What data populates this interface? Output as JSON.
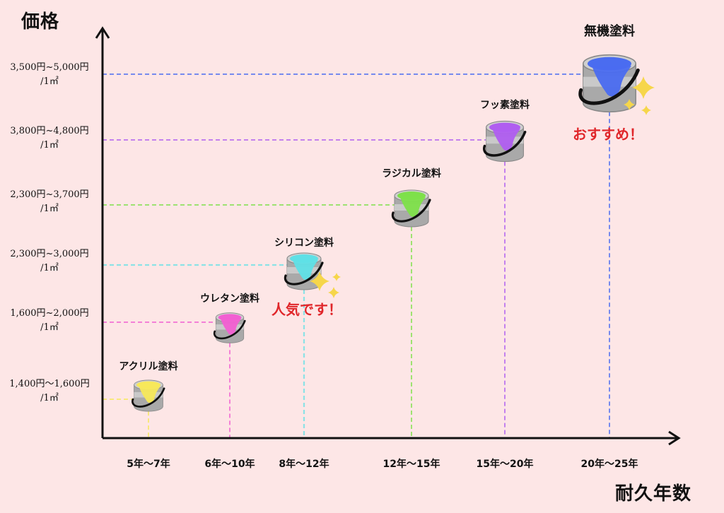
{
  "colors": {
    "background": "#fde6e6",
    "axis": "#111111",
    "acrylic": "#f7e85a",
    "urethane": "#f25fd2",
    "silicone": "#5fe0e6",
    "radical": "#7ee04a",
    "fluorine": "#b05ef0",
    "inorganic": "#4a6cf0",
    "callout": "#e0262a",
    "sparkle": "#f6d64a"
  },
  "icons": {
    "paint_can": "paint-can-icon",
    "sparkle": "sparkle-icon"
  },
  "chart_data": {
    "type": "scatter",
    "ylabel": "価格",
    "xlabel": "耐久年数",
    "categories": [
      "5年〜7年",
      "6年〜10年",
      "8年〜12年",
      "12年〜15年",
      "15年〜20年",
      "20年〜25年"
    ],
    "y_tick_labels": [
      {
        "line1": "1,400円〜1,600円",
        "line2": "/1㎡"
      },
      {
        "line1": "1,600円~2,000円",
        "line2": "/1㎡"
      },
      {
        "line1": "2,300円~3,000円",
        "line2": "/1㎡"
      },
      {
        "line1": "2,300円~3,700円",
        "line2": "/1㎡"
      },
      {
        "line1": "3,800円~4,800円",
        "line2": "/1㎡"
      },
      {
        "line1": "3,500円~5,000円",
        "line2": "/1㎡"
      }
    ],
    "grid": false,
    "series": [
      {
        "name": "アクリル塗料",
        "x": "5年〜7年",
        "y": "1,400円〜1,600円/1㎡",
        "color_key": "acrylic"
      },
      {
        "name": "ウレタン塗料",
        "x": "6年〜10年",
        "y": "1,600円~2,000円/1㎡",
        "color_key": "urethane"
      },
      {
        "name": "シリコン塗料",
        "x": "8年〜12年",
        "y": "2,300円~3,000円/1㎡",
        "color_key": "silicone",
        "annotation": "人気です！"
      },
      {
        "name": "ラジカル塗料",
        "x": "12年〜15年",
        "y": "2,300円~3,700円/1㎡",
        "color_key": "radical"
      },
      {
        "name": "フッ素塗料",
        "x": "15年〜20年",
        "y": "3,800円~4,800円/1㎡",
        "color_key": "fluorine"
      },
      {
        "name": "無機塗料",
        "x": "20年〜25年",
        "y": "3,500円~5,000円/1㎡",
        "color_key": "inorganic",
        "annotation": "おすすめ！"
      }
    ]
  }
}
